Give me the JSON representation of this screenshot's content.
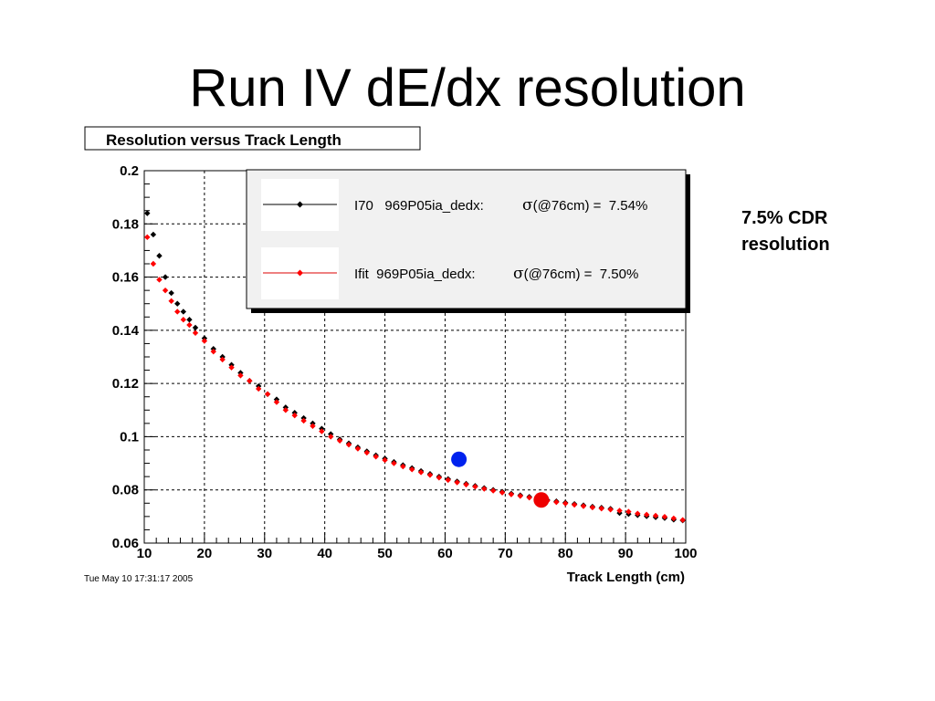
{
  "slide": {
    "title": "Run IV dE/dx resolution",
    "annotation_line1": "7.5% CDR",
    "annotation_line2": "resolution"
  },
  "chart_data": {
    "type": "scatter",
    "title": "Resolution versus Track Length",
    "xlabel": "Track Length (cm)",
    "ylabel": "",
    "xlim": [
      10,
      100
    ],
    "ylim": [
      0.06,
      0.2
    ],
    "xticks": [
      10,
      20,
      30,
      40,
      50,
      60,
      70,
      80,
      90,
      100
    ],
    "yticks": [
      0.06,
      0.08,
      0.1,
      0.12,
      0.14,
      0.16,
      0.18,
      0.2
    ],
    "ytick_labels": [
      "0.06",
      "0.08",
      "0.1",
      "0.12",
      "0.14",
      "0.16",
      "0.18",
      "0.2"
    ],
    "grid": true,
    "legend_position": "top-right",
    "timestamp": "Tue May 10 17:31:17 2005",
    "series": [
      {
        "name": "I70   969P05ia_dedx:",
        "sigma_label": "(@76cm) =  7.54%",
        "color": "#000000",
        "marker": "diamond",
        "x": [
          10.5,
          11.5,
          12.5,
          13.5,
          14.5,
          15.5,
          16.5,
          17.5,
          18.5,
          20,
          21.5,
          23,
          24.5,
          26,
          27.5,
          29,
          30.5,
          32,
          33.5,
          35,
          36.5,
          38,
          39.5,
          41,
          42.5,
          44,
          45.5,
          47,
          48.5,
          50,
          51.5,
          53,
          54.5,
          56,
          57.5,
          59,
          60.5,
          62,
          63.5,
          65,
          66.5,
          68,
          69.5,
          71,
          72.5,
          74,
          75.5,
          77,
          78.5,
          80,
          81.5,
          83,
          84.5,
          86,
          87.5,
          89,
          90.5,
          92,
          93.5,
          95,
          96.5,
          98,
          99.5
        ],
        "y": [
          0.184,
          0.176,
          0.168,
          0.16,
          0.154,
          0.15,
          0.147,
          0.144,
          0.141,
          0.137,
          0.133,
          0.13,
          0.127,
          0.124,
          0.121,
          0.119,
          0.116,
          0.114,
          0.111,
          0.109,
          0.107,
          0.105,
          0.103,
          0.101,
          0.099,
          0.0975,
          0.096,
          0.0945,
          0.093,
          0.0918,
          0.0905,
          0.0893,
          0.0882,
          0.0871,
          0.086,
          0.085,
          0.0841,
          0.0832,
          0.0823,
          0.0815,
          0.0807,
          0.08,
          0.0793,
          0.0786,
          0.078,
          0.0774,
          0.0768,
          0.0762,
          0.0757,
          0.0752,
          0.0747,
          0.0742,
          0.0737,
          0.0733,
          0.0729,
          0.0713,
          0.0709,
          0.0705,
          0.0701,
          0.0697,
          0.0694,
          0.0688,
          0.0685
        ]
      },
      {
        "name": "Ifit  969P05ia_dedx:",
        "sigma_label": "(@76cm) =  7.50%",
        "color": "#ff0000",
        "marker": "diamond",
        "x": [
          10.5,
          11.5,
          12.5,
          13.5,
          14.5,
          15.5,
          16.5,
          17.5,
          18.5,
          20,
          21.5,
          23,
          24.5,
          26,
          27.5,
          29,
          30.5,
          32,
          33.5,
          35,
          36.5,
          38,
          39.5,
          41,
          42.5,
          44,
          45.5,
          47,
          48.5,
          50,
          51.5,
          53,
          54.5,
          56,
          57.5,
          59,
          60.5,
          62,
          63.5,
          65,
          66.5,
          68,
          69.5,
          71,
          72.5,
          74,
          75.5,
          77,
          78.5,
          80,
          81.5,
          83,
          84.5,
          86,
          87.5,
          89,
          90.5,
          92,
          93.5,
          95,
          96.5,
          98,
          99.5
        ],
        "y": [
          0.175,
          0.165,
          0.159,
          0.155,
          0.151,
          0.147,
          0.144,
          0.142,
          0.139,
          0.136,
          0.132,
          0.129,
          0.126,
          0.123,
          0.121,
          0.118,
          0.116,
          0.113,
          0.11,
          0.108,
          0.106,
          0.104,
          0.102,
          0.1,
          0.0985,
          0.097,
          0.0955,
          0.094,
          0.0925,
          0.0912,
          0.09,
          0.0888,
          0.0877,
          0.0866,
          0.0856,
          0.0846,
          0.0837,
          0.0828,
          0.082,
          0.0812,
          0.0804,
          0.0797,
          0.079,
          0.0783,
          0.0777,
          0.0771,
          0.0765,
          0.0759,
          0.0754,
          0.0749,
          0.0744,
          0.0739,
          0.0734,
          0.073,
          0.0726,
          0.0722,
          0.0718,
          0.0711,
          0.0707,
          0.0703,
          0.0699,
          0.0693,
          0.0687
        ]
      }
    ],
    "highlights": [
      {
        "x": 62.3,
        "y": 0.0915,
        "color": "#0022ee"
      },
      {
        "x": 76,
        "y": 0.0762,
        "color": "#ee0000"
      }
    ]
  }
}
